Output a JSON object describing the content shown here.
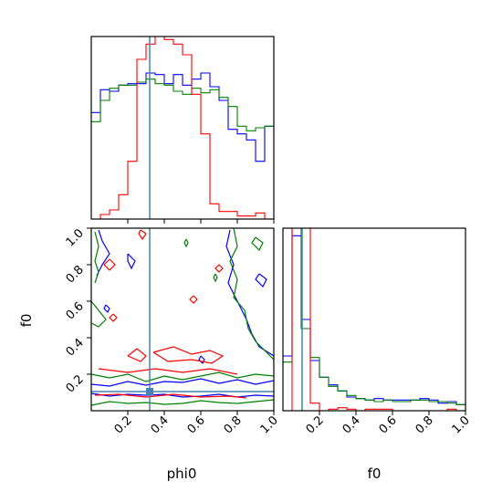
{
  "chart_data": {
    "type": "corner",
    "parameters": [
      "phi0",
      "f0"
    ],
    "truth": {
      "phi0": 0.32,
      "f0": 0.105,
      "color": "#4682b4"
    },
    "x_axis_label": "phi0",
    "y_axis_label": "f0",
    "f0_x_axis_label": "f0",
    "phi0_tick_labels": [
      "0.2",
      "0.4",
      "0.6",
      "0.8",
      "1.0"
    ],
    "f0_tick_labels": [
      "0.2",
      "0.4",
      "0.6",
      "0.8",
      "1.0"
    ],
    "series_colors": {
      "blue": "#0000ff",
      "green": "#008000",
      "red": "#ff0000"
    },
    "phi0_histogram": {
      "bin_edges": [
        0,
        0.05,
        0.1,
        0.15,
        0.2,
        0.25,
        0.3,
        0.35,
        0.4,
        0.45,
        0.5,
        0.55,
        0.6,
        0.65,
        0.7,
        0.75,
        0.8,
        0.85,
        0.9,
        0.95,
        1.0
      ],
      "blue": [
        0.7,
        0.85,
        0.84,
        0.88,
        0.89,
        0.89,
        0.96,
        0.95,
        0.89,
        0.95,
        0.88,
        0.92,
        0.96,
        0.87,
        0.78,
        0.59,
        0.56,
        0.52,
        0.38,
        0.61
      ],
      "green": [
        0.64,
        0.78,
        0.86,
        0.88,
        0.88,
        0.9,
        0.92,
        0.89,
        0.88,
        0.84,
        0.82,
        0.86,
        0.83,
        0.85,
        0.8,
        0.74,
        0.61,
        0.58,
        0.6,
        0.61
      ],
      "red": [
        0.0,
        0.03,
        0.06,
        0.16,
        0.38,
        1.05,
        1.15,
        1.2,
        1.18,
        1.15,
        1.08,
        0.82,
        0.56,
        0.1,
        0.05,
        0.05,
        0.02,
        0.02,
        0.04,
        0.0
      ]
    },
    "f0_histogram": {
      "bin_edges": [
        0,
        0.05,
        0.1,
        0.15,
        0.2,
        0.25,
        0.3,
        0.35,
        0.4,
        0.45,
        0.5,
        0.55,
        0.6,
        0.65,
        0.7,
        0.75,
        0.8,
        0.85,
        0.9,
        0.95,
        1.0
      ],
      "blue": [
        0.36,
        1.15,
        0.6,
        0.33,
        0.22,
        0.17,
        0.13,
        0.09,
        0.08,
        0.07,
        0.08,
        0.07,
        0.07,
        0.07,
        0.07,
        0.08,
        0.07,
        0.05,
        0.06,
        0.04
      ],
      "green": [
        0.32,
        1.2,
        0.54,
        0.35,
        0.22,
        0.16,
        0.13,
        0.1,
        0.08,
        0.07,
        0.06,
        0.07,
        0.06,
        0.06,
        0.07,
        0.07,
        0.06,
        0.06,
        0.05,
        0.04
      ],
      "red": [
        0.0,
        1.35,
        1.3,
        0.05,
        0.0,
        0.01,
        0.02,
        0.01,
        0.0,
        0.01,
        0.01,
        0.01,
        0.0,
        0.0,
        0.0,
        0.0,
        0.0,
        0.0,
        0.01,
        0.0
      ]
    },
    "contours_2d": {
      "blue": [
        [
          [
            0.0,
            0.145
          ],
          [
            0.1,
            0.135
          ],
          [
            0.2,
            0.16
          ],
          [
            0.3,
            0.14
          ],
          [
            0.4,
            0.16
          ],
          [
            0.5,
            0.155
          ],
          [
            0.6,
            0.175
          ],
          [
            0.7,
            0.15
          ],
          [
            0.8,
            0.17
          ],
          [
            0.9,
            0.145
          ],
          [
            1.0,
            0.165
          ]
        ],
        [
          [
            0.0,
            0.095
          ],
          [
            0.1,
            0.08
          ],
          [
            0.2,
            0.09
          ],
          [
            0.3,
            0.085
          ],
          [
            0.4,
            0.09
          ],
          [
            0.5,
            0.075
          ],
          [
            0.6,
            0.08
          ],
          [
            0.7,
            0.09
          ],
          [
            0.8,
            0.075
          ],
          [
            0.9,
            0.085
          ],
          [
            1.0,
            0.08
          ]
        ],
        [
          [
            0.76,
            0.99
          ],
          [
            0.74,
            0.9
          ],
          [
            0.78,
            0.8
          ],
          [
            0.75,
            0.7
          ],
          [
            0.8,
            0.6
          ],
          [
            0.85,
            0.5
          ],
          [
            0.88,
            0.42
          ],
          [
            0.92,
            0.35
          ],
          [
            1.0,
            0.3
          ]
        ],
        [
          [
            0.04,
            0.99
          ],
          [
            0.06,
            0.93
          ],
          [
            0.1,
            0.86
          ],
          [
            0.06,
            0.8
          ],
          [
            0.03,
            0.74
          ]
        ],
        [
          [
            0.2,
            0.86
          ],
          [
            0.24,
            0.82
          ],
          [
            0.22,
            0.78
          ],
          [
            0.2,
            0.82
          ],
          [
            0.2,
            0.86
          ]
        ],
        [
          [
            0.08,
            0.58
          ],
          [
            0.1,
            0.56
          ],
          [
            0.09,
            0.54
          ],
          [
            0.07,
            0.56
          ],
          [
            0.08,
            0.58
          ]
        ],
        [
          [
            0.6,
            0.3
          ],
          [
            0.62,
            0.28
          ],
          [
            0.61,
            0.26
          ],
          [
            0.59,
            0.28
          ],
          [
            0.6,
            0.3
          ]
        ],
        [
          [
            0.92,
            0.75
          ],
          [
            0.96,
            0.72
          ],
          [
            0.94,
            0.68
          ],
          [
            0.9,
            0.72
          ],
          [
            0.92,
            0.75
          ]
        ]
      ],
      "green": [
        [
          [
            0.0,
            0.2
          ],
          [
            0.1,
            0.18
          ],
          [
            0.2,
            0.2
          ],
          [
            0.3,
            0.16
          ],
          [
            0.4,
            0.19
          ],
          [
            0.5,
            0.17
          ],
          [
            0.6,
            0.19
          ],
          [
            0.7,
            0.21
          ],
          [
            0.8,
            0.18
          ],
          [
            0.9,
            0.2
          ],
          [
            1.0,
            0.19
          ]
        ],
        [
          [
            0.0,
            0.03
          ],
          [
            0.1,
            0.05
          ],
          [
            0.2,
            0.04
          ],
          [
            0.3,
            0.045
          ],
          [
            0.4,
            0.035
          ],
          [
            0.5,
            0.04
          ],
          [
            0.6,
            0.055
          ],
          [
            0.7,
            0.045
          ],
          [
            0.8,
            0.04
          ],
          [
            0.9,
            0.05
          ],
          [
            1.0,
            0.06
          ]
        ],
        [
          [
            0.78,
            1.0
          ],
          [
            0.8,
            0.9
          ],
          [
            0.76,
            0.82
          ],
          [
            0.8,
            0.72
          ],
          [
            0.78,
            0.62
          ],
          [
            0.84,
            0.55
          ],
          [
            0.86,
            0.45
          ],
          [
            0.9,
            0.38
          ],
          [
            0.96,
            0.32
          ],
          [
            1.0,
            0.28
          ]
        ],
        [
          [
            0.02,
            0.98
          ],
          [
            0.04,
            0.9
          ],
          [
            0.02,
            0.82
          ],
          [
            0.04,
            0.76
          ],
          [
            0.02,
            0.7
          ]
        ],
        [
          [
            0.0,
            0.6
          ],
          [
            0.04,
            0.55
          ],
          [
            0.08,
            0.5
          ],
          [
            0.04,
            0.46
          ],
          [
            0.0,
            0.48
          ]
        ],
        [
          [
            0.52,
            0.94
          ],
          [
            0.53,
            0.92
          ],
          [
            0.52,
            0.9
          ],
          [
            0.51,
            0.92
          ],
          [
            0.52,
            0.94
          ]
        ],
        [
          [
            0.68,
            0.75
          ],
          [
            0.69,
            0.73
          ],
          [
            0.68,
            0.71
          ],
          [
            0.67,
            0.73
          ],
          [
            0.68,
            0.75
          ]
        ],
        [
          [
            0.9,
            0.95
          ],
          [
            0.94,
            0.92
          ],
          [
            0.92,
            0.88
          ],
          [
            0.88,
            0.92
          ],
          [
            0.9,
            0.95
          ]
        ]
      ],
      "red": [
        [
          [
            0.2,
            0.3
          ],
          [
            0.25,
            0.34
          ],
          [
            0.3,
            0.3
          ],
          [
            0.27,
            0.27
          ],
          [
            0.2,
            0.3
          ]
        ],
        [
          [
            0.34,
            0.32
          ],
          [
            0.45,
            0.35
          ],
          [
            0.55,
            0.31
          ],
          [
            0.65,
            0.33
          ],
          [
            0.72,
            0.3
          ],
          [
            0.66,
            0.26
          ],
          [
            0.55,
            0.28
          ],
          [
            0.42,
            0.27
          ],
          [
            0.34,
            0.32
          ]
        ],
        [
          [
            0.04,
            0.23
          ],
          [
            0.2,
            0.21
          ],
          [
            0.35,
            0.23
          ],
          [
            0.5,
            0.21
          ],
          [
            0.65,
            0.23
          ],
          [
            0.8,
            0.2
          ]
        ],
        [
          [
            0.02,
            0.085
          ],
          [
            0.15,
            0.09
          ],
          [
            0.3,
            0.075
          ],
          [
            0.45,
            0.09
          ],
          [
            0.6,
            0.075
          ],
          [
            0.75,
            0.08
          ],
          [
            0.85,
            0.07
          ]
        ],
        [
          [
            0.1,
            0.83
          ],
          [
            0.13,
            0.8
          ],
          [
            0.1,
            0.77
          ],
          [
            0.07,
            0.8
          ],
          [
            0.1,
            0.83
          ]
        ],
        [
          [
            0.56,
            0.63
          ],
          [
            0.58,
            0.61
          ],
          [
            0.56,
            0.59
          ],
          [
            0.54,
            0.61
          ],
          [
            0.56,
            0.63
          ]
        ],
        [
          [
            0.7,
            0.8
          ],
          [
            0.72,
            0.78
          ],
          [
            0.7,
            0.76
          ],
          [
            0.68,
            0.78
          ],
          [
            0.7,
            0.8
          ]
        ],
        [
          [
            0.12,
            0.53
          ],
          [
            0.14,
            0.51
          ],
          [
            0.12,
            0.49
          ],
          [
            0.1,
            0.51
          ],
          [
            0.12,
            0.53
          ]
        ],
        [
          [
            0.27,
            0.99
          ],
          [
            0.3,
            0.97
          ],
          [
            0.28,
            0.94
          ],
          [
            0.26,
            0.97
          ],
          [
            0.27,
            0.99
          ]
        ]
      ]
    }
  }
}
